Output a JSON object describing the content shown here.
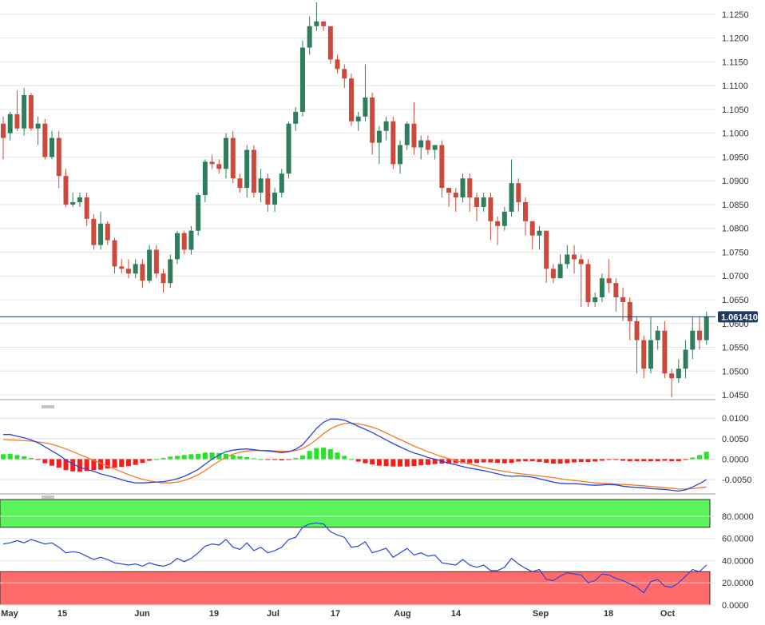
{
  "colors": {
    "up": "#2e7d5b",
    "down": "#cc4a3c",
    "grid": "#e4e4e4",
    "panel_border": "#9a9a9a",
    "current_line": "#1f3b63",
    "price_label_bg": "#1f3b63",
    "macd_line": "#2c43e0",
    "signal_line": "#f07a28",
    "hist_pos": "#22e622",
    "hist_neg": "#ff1a1a",
    "rsi_line": "#2c43e0",
    "overbought_zone": "#5cf25c",
    "oversold_zone": "#ff6b6b"
  },
  "current_price": 1.0614,
  "current_price_label": "1.061410",
  "x_axis_labels": [
    "May",
    "15",
    "Jun",
    "19",
    "Jul",
    "17",
    "Aug",
    "14",
    "Sep",
    "18",
    "Oct"
  ],
  "chart_data": [
    {
      "type": "candlestick",
      "ylim": [
        1.044,
        1.128
      ],
      "yticks": [
        "1.1250",
        "1.1200",
        "1.1150",
        "1.1100",
        "1.1050",
        "1.1000",
        "1.0950",
        "1.0900",
        "1.0850",
        "1.0800",
        "1.0750",
        "1.0700",
        "1.0650",
        "1.0600",
        "1.0550",
        "1.0500",
        "1.0450"
      ],
      "close": [
        1.099,
        1.104,
        1.101,
        1.108,
        1.101,
        1.102,
        1.095,
        1.099,
        1.091,
        1.085,
        1.0855,
        1.0865,
        1.082,
        1.0765,
        1.081,
        1.0775,
        1.072,
        1.0715,
        1.0705,
        1.0725,
        1.069,
        1.0755,
        1.0705,
        1.0685,
        1.0735,
        1.079,
        1.0755,
        1.0795,
        1.087,
        1.094,
        1.0935,
        1.0925,
        1.099,
        1.0905,
        1.0885,
        1.0965,
        1.0875,
        1.0905,
        1.085,
        1.0875,
        1.0915,
        1.102,
        1.1045,
        1.118,
        1.1225,
        1.1235,
        1.1225,
        1.1155,
        1.1135,
        1.1115,
        1.1025,
        1.1035,
        1.1075,
        1.098,
        1.1005,
        1.1025,
        1.0935,
        1.0975,
        1.102,
        1.097,
        1.0985,
        1.0965,
        1.0975,
        1.0885,
        1.0875,
        1.0865,
        1.0905,
        1.0865,
        1.0845,
        1.0865,
        1.0815,
        1.0805,
        1.0835,
        1.0895,
        1.0855,
        1.0815,
        1.0785,
        1.0795,
        1.0715,
        1.0695,
        1.0725,
        1.0745,
        1.0735,
        1.0725,
        1.0645,
        1.0655,
        1.0695,
        1.0685,
        1.0655,
        1.0645,
        1.0605,
        1.0565,
        1.0505,
        1.0565,
        1.0585,
        1.0495,
        1.0485,
        1.0505,
        1.0545,
        1.0585,
        1.0565,
        1.0615
      ],
      "open": [
        1.102,
        1.1,
        1.104,
        1.101,
        1.108,
        1.101,
        1.102,
        1.095,
        1.099,
        1.091,
        1.085,
        1.0855,
        1.0865,
        1.082,
        1.0765,
        1.081,
        1.0775,
        1.072,
        1.0715,
        1.0705,
        1.0725,
        1.069,
        1.0755,
        1.0705,
        1.0685,
        1.0735,
        1.079,
        1.0755,
        1.0795,
        1.087,
        1.094,
        1.0935,
        1.0925,
        1.099,
        1.0905,
        1.0885,
        1.0965,
        1.0875,
        1.0905,
        1.085,
        1.0875,
        1.0915,
        1.102,
        1.1045,
        1.118,
        1.1225,
        1.1235,
        1.1225,
        1.1155,
        1.1135,
        1.1115,
        1.1025,
        1.1035,
        1.1075,
        1.098,
        1.1005,
        1.1025,
        1.0935,
        1.0975,
        1.102,
        1.097,
        1.0985,
        1.0965,
        1.0975,
        1.0885,
        1.0875,
        1.0865,
        1.0905,
        1.0865,
        1.0845,
        1.0865,
        1.0815,
        1.0805,
        1.0835,
        1.0895,
        1.0855,
        1.0815,
        1.0785,
        1.0795,
        1.0715,
        1.0695,
        1.0725,
        1.0745,
        1.0735,
        1.0725,
        1.0645,
        1.0655,
        1.0695,
        1.0685,
        1.0655,
        1.0645,
        1.0605,
        1.0565,
        1.0505,
        1.0565,
        1.0585,
        1.0495,
        1.0485,
        1.0505,
        1.0545,
        1.0585,
        1.0565
      ],
      "high": [
        1.1035,
        1.1045,
        1.109,
        1.1095,
        1.1085,
        1.1035,
        1.103,
        1.1005,
        1.1005,
        1.0925,
        1.0875,
        1.0875,
        1.0875,
        1.083,
        1.0835,
        1.0815,
        1.078,
        1.0735,
        1.0735,
        1.0735,
        1.0735,
        1.0765,
        1.0765,
        1.0715,
        1.0745,
        1.0795,
        1.0795,
        1.0805,
        1.0875,
        1.0945,
        1.0955,
        1.0945,
        1.1,
        1.1005,
        1.0915,
        1.0975,
        1.0975,
        1.0925,
        1.0915,
        1.0885,
        1.0925,
        1.1025,
        1.1055,
        1.1195,
        1.1245,
        1.1275,
        1.1235,
        1.1225,
        1.1165,
        1.1145,
        1.1125,
        1.1045,
        1.1145,
        1.1085,
        1.1015,
        1.1035,
        1.1035,
        1.0985,
        1.1025,
        1.1065,
        1.0995,
        1.0995,
        1.0975,
        1.0985,
        1.0885,
        1.0885,
        1.0915,
        1.0915,
        1.0875,
        1.0875,
        1.0875,
        1.0825,
        1.0845,
        1.0945,
        1.0905,
        1.0865,
        1.0815,
        1.0805,
        1.0795,
        1.0725,
        1.0745,
        1.0765,
        1.0765,
        1.0745,
        1.0735,
        1.0665,
        1.0705,
        1.0735,
        1.0695,
        1.0675,
        1.0655,
        1.0615,
        1.0575,
        1.0615,
        1.0595,
        1.0605,
        1.0505,
        1.0525,
        1.0565,
        1.0615,
        1.0615,
        1.0625
      ],
      "low": [
        1.0945,
        1.0985,
        1.1005,
        1.0995,
        1.1005,
        1.0975,
        1.0945,
        1.0945,
        1.0885,
        1.0845,
        1.0845,
        1.0845,
        1.0805,
        1.0755,
        1.0755,
        1.0765,
        1.0705,
        1.0705,
        1.0695,
        1.0695,
        1.0675,
        1.0685,
        1.0695,
        1.0665,
        1.0675,
        1.0725,
        1.0745,
        1.0745,
        1.0785,
        1.0855,
        1.0925,
        1.0915,
        1.0905,
        1.0895,
        1.0875,
        1.0865,
        1.0865,
        1.0855,
        1.0835,
        1.0835,
        1.0865,
        1.0905,
        1.1005,
        1.1035,
        1.1165,
        1.1215,
        1.1215,
        1.1145,
        1.1125,
        1.1095,
        1.1015,
        1.1005,
        1.1025,
        1.0955,
        1.0935,
        1.0985,
        1.0925,
        1.0915,
        1.0965,
        1.0955,
        1.0945,
        1.0955,
        1.0945,
        1.0865,
        1.0845,
        1.0835,
        1.0855,
        1.0835,
        1.0815,
        1.0835,
        1.0775,
        1.0765,
        1.0795,
        1.0825,
        1.0835,
        1.0785,
        1.0755,
        1.0755,
        1.0685,
        1.0685,
        1.0695,
        1.0715,
        1.0705,
        1.0635,
        1.0635,
        1.0635,
        1.0645,
        1.0665,
        1.0625,
        1.0605,
        1.0565,
        1.0495,
        1.0485,
        1.0495,
        1.0545,
        1.0485,
        1.0445,
        1.0475,
        1.0485,
        1.0525,
        1.0545,
        1.0555
      ]
    },
    {
      "type": "macd",
      "ylim": [
        -0.0085,
        0.012
      ],
      "yticks": [
        "0.0100",
        "0.0050",
        "0.0000",
        "-0.0050"
      ],
      "series": [
        {
          "values": [
            0.006,
            0.006,
            0.0056,
            0.0052,
            0.0047,
            0.004,
            0.003,
            0.002,
            0.001,
            -0.0002,
            -0.0012,
            -0.002,
            -0.0025,
            -0.003,
            -0.0036,
            -0.004,
            -0.0045,
            -0.005,
            -0.0055,
            -0.0058,
            -0.0058,
            -0.0057,
            -0.0056,
            -0.0055,
            -0.0052,
            -0.0048,
            -0.0042,
            -0.0034,
            -0.0025,
            -0.0012,
            0.0,
            0.001,
            0.0018,
            0.0022,
            0.0024,
            0.0025,
            0.0023,
            0.0021,
            0.002,
            0.0018,
            0.0016,
            0.0018,
            0.0024,
            0.0035,
            0.0055,
            0.0075,
            0.009,
            0.0098,
            0.0098,
            0.0095,
            0.0088,
            0.008,
            0.0073,
            0.0065,
            0.0056,
            0.0047,
            0.0038,
            0.003,
            0.0022,
            0.0015,
            0.001,
            0.0004,
            0.0,
            -0.0005,
            -0.001,
            -0.0014,
            -0.0018,
            -0.0022,
            -0.0025,
            -0.0028,
            -0.0032,
            -0.0036,
            -0.004,
            -0.0042,
            -0.0041,
            -0.0042,
            -0.0044,
            -0.0048,
            -0.0052,
            -0.0056,
            -0.0059,
            -0.006,
            -0.006,
            -0.0061,
            -0.0063,
            -0.0064,
            -0.0063,
            -0.0062,
            -0.0063,
            -0.0066,
            -0.0068,
            -0.0069,
            -0.007,
            -0.0072,
            -0.0073,
            -0.0074,
            -0.0076,
            -0.0078,
            -0.0075,
            -0.0068,
            -0.006,
            -0.005
          ]
        },
        {
          "values": [
            0.0048,
            0.0047,
            0.0046,
            0.0045,
            0.0044,
            0.0042,
            0.004,
            0.0036,
            0.0031,
            0.0025,
            0.0018,
            0.0011,
            0.0004,
            -0.0003,
            -0.001,
            -0.0017,
            -0.0024,
            -0.0031,
            -0.0038,
            -0.0044,
            -0.0049,
            -0.0053,
            -0.0056,
            -0.0058,
            -0.0058,
            -0.0056,
            -0.0052,
            -0.0046,
            -0.0038,
            -0.0028,
            -0.0016,
            -0.0005,
            0.0005,
            0.0012,
            0.0017,
            0.002,
            0.0021,
            0.0021,
            0.0021,
            0.002,
            0.0019,
            0.0019,
            0.0021,
            0.0026,
            0.0035,
            0.0048,
            0.0062,
            0.0074,
            0.0082,
            0.0087,
            0.0088,
            0.0086,
            0.0083,
            0.0078,
            0.0072,
            0.0064,
            0.0056,
            0.0048,
            0.004,
            0.0032,
            0.0025,
            0.0018,
            0.0012,
            0.0006,
            0.0001,
            -0.0004,
            -0.0008,
            -0.0012,
            -0.0016,
            -0.002,
            -0.0024,
            -0.0027,
            -0.003,
            -0.0033,
            -0.0035,
            -0.0037,
            -0.0039,
            -0.0041,
            -0.0043,
            -0.0045,
            -0.0048,
            -0.005,
            -0.0052,
            -0.0054,
            -0.0056,
            -0.0058,
            -0.0059,
            -0.006,
            -0.0061,
            -0.0062,
            -0.0063,
            -0.0064,
            -0.0065,
            -0.0067,
            -0.0068,
            -0.007,
            -0.0071,
            -0.0073,
            -0.0073,
            -0.0072,
            -0.007,
            -0.0068
          ]
        }
      ]
    },
    {
      "type": "rsi",
      "ylim": [
        0,
        95
      ],
      "yticks": [
        "80.0000",
        "60.0000",
        "40.0000",
        "20.0000",
        "0.0000"
      ],
      "overbought": 70,
      "oversold": 30,
      "series": [
        {
          "values": [
            55,
            56,
            58,
            56,
            59,
            57,
            55,
            56,
            52,
            47,
            48,
            47,
            44,
            41,
            43,
            41,
            38,
            37,
            36,
            37,
            35,
            38,
            36,
            35,
            37,
            42,
            39,
            42,
            47,
            53,
            55,
            54,
            59,
            52,
            50,
            56,
            49,
            52,
            47,
            49,
            52,
            59,
            61,
            70,
            73,
            74,
            73,
            66,
            63,
            61,
            52,
            53,
            57,
            47,
            49,
            51,
            43,
            47,
            51,
            45,
            47,
            44,
            45,
            38,
            37,
            36,
            41,
            36,
            34,
            36,
            31,
            31,
            34,
            42,
            37,
            33,
            30,
            32,
            23,
            22,
            26,
            29,
            28,
            27,
            20,
            22,
            28,
            27,
            24,
            22,
            19,
            16,
            11,
            21,
            23,
            17,
            16,
            20,
            26,
            32,
            30,
            36
          ]
        }
      ]
    }
  ]
}
